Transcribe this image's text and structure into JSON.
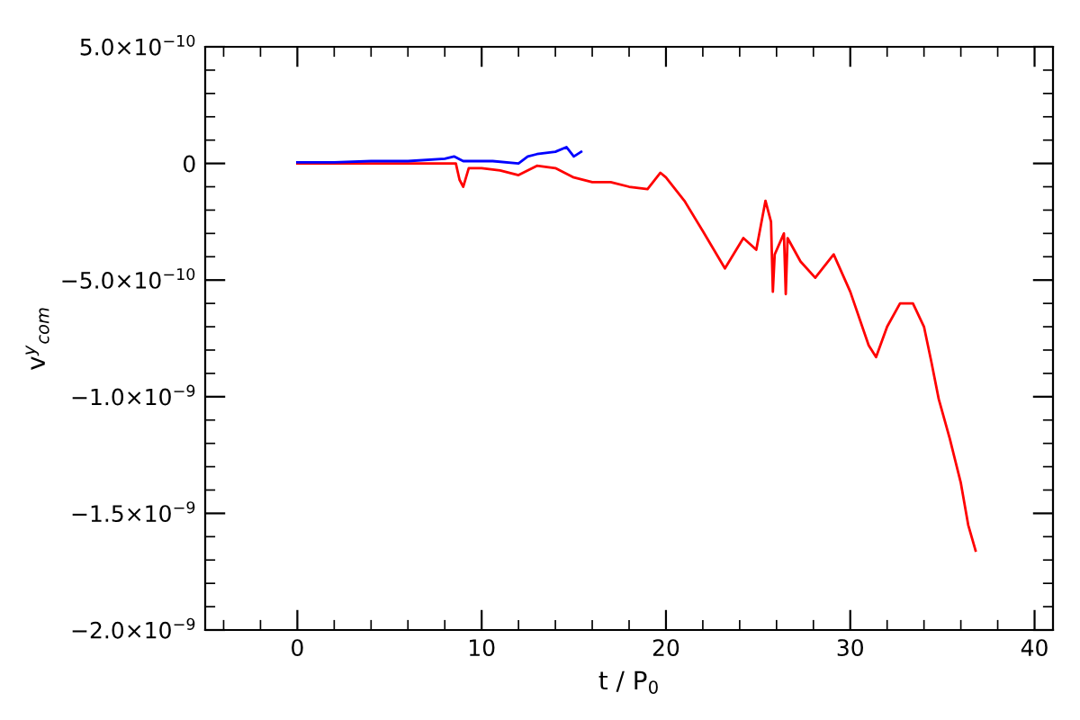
{
  "chart_data": {
    "type": "line",
    "xlabel": "t / P$_{0}$",
    "ylabel": "v$^{y}$$_{com}$",
    "series": [
      {
        "color": "#ff0000",
        "x": [
          0,
          2,
          4,
          6,
          8,
          8.6,
          8.8,
          9.0,
          9.3,
          10,
          11,
          12,
          13,
          14,
          15,
          16,
          17,
          18,
          19,
          19.7,
          20,
          21,
          22,
          23.2,
          24.2,
          24.9,
          25.4,
          25.7,
          25.8,
          25.9,
          26.4,
          26.5,
          26.6,
          27.3,
          28.1,
          29.1,
          30,
          31,
          31.4,
          32,
          32.7,
          33.4,
          34,
          34.4,
          34.8,
          35.4,
          36,
          36.4,
          36.8
        ],
        "values": [
          0,
          0,
          0,
          0,
          0,
          0,
          -7e-11,
          -1e-10,
          -2e-11,
          -2e-11,
          -3e-11,
          -5e-11,
          -1e-11,
          -2e-11,
          -6e-11,
          -8e-11,
          -8e-11,
          -1e-10,
          -1.1e-10,
          -4e-11,
          -6e-11,
          -1.6e-10,
          -2.9e-10,
          -4.5e-10,
          -3.2e-10,
          -3.7e-10,
          -1.6e-10,
          -2.5e-10,
          -5.5e-10,
          -3.9e-10,
          -3e-10,
          -5.6e-10,
          -3.2e-10,
          -4.2e-10,
          -4.9e-10,
          -3.9e-10,
          -5.5e-10,
          -7.8e-10,
          -8.3e-10,
          -7e-10,
          -6e-10,
          -6e-10,
          -7e-10,
          -8.5e-10,
          -1.01e-09,
          -1.18e-09,
          -1.37e-09,
          -1.55e-09,
          -1.66e-09
        ]
      },
      {
        "color": "#0000ff",
        "x": [
          0,
          2,
          4,
          6,
          8,
          8.5,
          9,
          10.6,
          12,
          12.5,
          13,
          14,
          14.6,
          15,
          15.4
        ],
        "values": [
          5e-12,
          5e-12,
          1e-11,
          1e-11,
          2e-11,
          3e-11,
          1e-11,
          1e-11,
          0,
          3e-11,
          4e-11,
          5e-11,
          7e-11,
          3e-11,
          5e-11
        ]
      }
    ],
    "xlim": [
      -5,
      41
    ],
    "xticks": [
      0,
      10,
      20,
      30,
      40
    ],
    "ylim": [
      -2e-09,
      5e-10
    ],
    "yticks": [
      {
        "value": -2e-09,
        "label": "−2.0×10$^{−9}$"
      },
      {
        "value": -1.5e-09,
        "label": "−1.5×10$^{−9}$"
      },
      {
        "value": -1e-09,
        "label": "−1.0×10$^{−9}$"
      },
      {
        "value": -5e-10,
        "label": "−5.0×10$^{−10}$"
      },
      {
        "value": 0,
        "label": "0"
      },
      {
        "value": 5e-10,
        "label": "5.0×10$^{−10}$"
      }
    ],
    "grid": false,
    "legend": false,
    "marker": "none",
    "line_style": "solid"
  }
}
